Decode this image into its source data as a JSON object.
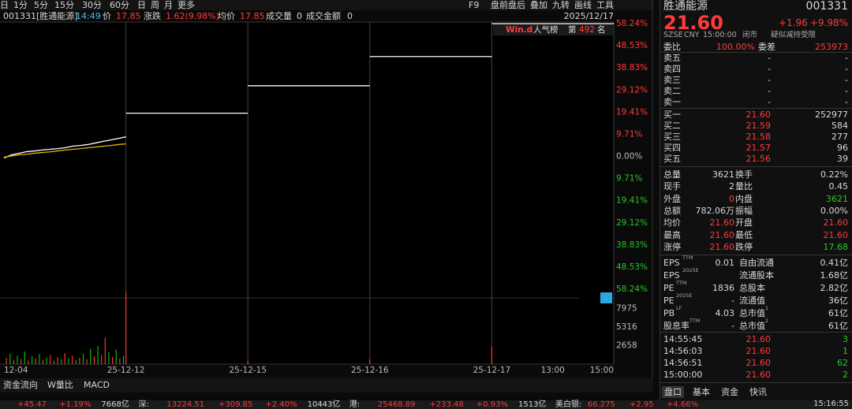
{
  "toolbar": {
    "left": [
      "日",
      "1分",
      "5分",
      "15分",
      "30分",
      "60分",
      "日",
      "周",
      "月",
      "更多"
    ],
    "right": [
      "F9",
      "盘前盘后",
      "叠加",
      "九转",
      "画线",
      "工具"
    ]
  },
  "info": {
    "code": "001331[胜通能源]",
    "time": "14:49",
    "price_label": "价",
    "price": "17.85",
    "change_label": "涨跌",
    "change": "1.62(9.98%)",
    "avg_label": "均价",
    "avg": "17.85",
    "vol_label": "成交量",
    "vol": "0",
    "amount_label": "成交金额",
    "amount": "0",
    "date": "2025/12/17"
  },
  "rank": {
    "brand": "Win.d",
    "label": "人气榜",
    "prefix": "第",
    "value": "492",
    "suffix": "名"
  },
  "chart_data": [
    {
      "type": "line",
      "xlim": [
        0,
        5
      ],
      "ylim": [
        -58.24,
        58.24
      ],
      "xticks": [
        {
          "value": 0,
          "label": "12-04"
        },
        {
          "value": 1,
          "label": "25-12-12"
        },
        {
          "value": 2,
          "label": "25-12-15"
        },
        {
          "value": 3,
          "label": "25-12-16"
        },
        {
          "value": 4,
          "label": "25-12-17"
        },
        {
          "value": 4.5,
          "label": "13:00"
        },
        {
          "value": 5,
          "label": "15:00"
        }
      ],
      "yticks": [
        {
          "value": 58.24,
          "label": "58.24%"
        },
        {
          "value": 48.53,
          "label": "48.53%"
        },
        {
          "value": 38.83,
          "label": "38.83%"
        },
        {
          "value": 29.12,
          "label": "29.12%"
        },
        {
          "value": 19.41,
          "label": "19.41%"
        },
        {
          "value": 9.71,
          "label": "9.71%"
        },
        {
          "value": 0,
          "label": "0.00%"
        },
        {
          "value": -9.71,
          "label": "9.71%"
        },
        {
          "value": -19.41,
          "label": "19.41%"
        },
        {
          "value": -29.12,
          "label": "29.12%"
        },
        {
          "value": -38.83,
          "label": "38.83%"
        },
        {
          "value": -48.53,
          "label": "48.53%"
        },
        {
          "value": -58.24,
          "label": "58.24%"
        }
      ],
      "x": [
        0,
        0.0625,
        0.125,
        0.1875,
        0.25,
        0.3125,
        0.375,
        0.4375,
        0.5,
        0.5625,
        0.625,
        0.6875,
        0.75,
        0.8125,
        0.875,
        0.9375,
        1,
        1,
        1,
        2,
        2,
        2,
        3,
        3,
        3,
        4,
        4,
        4,
        5
      ],
      "series": [
        {
          "color": "#ffffff",
          "values": [
            -0.7,
            0.7,
            1.4,
            2.1,
            2.4,
            2.8,
            3.1,
            3.4,
            3.8,
            4.5,
            4.8,
            5.2,
            5.9,
            6.6,
            7.2,
            7.9,
            8.6,
            null,
            18.97,
            18.97,
            null,
            31.0,
            31.0,
            null,
            43.8,
            43.8,
            null,
            58.24,
            58.24
          ]
        },
        {
          "color": "#e8b400",
          "values": [
            -0.3,
            0.2,
            0.7,
            1.0,
            1.4,
            1.7,
            2.0,
            2.4,
            2.8,
            3.1,
            3.4,
            3.8,
            4.1,
            4.5,
            4.8,
            5.2,
            5.5,
            null,
            null,
            null,
            null,
            null,
            null,
            null,
            null,
            null,
            null,
            null,
            null
          ]
        }
      ]
    },
    {
      "type": "bar",
      "xlim": [
        0,
        5
      ],
      "ylim": [
        0,
        10632
      ],
      "yticks": [
        2658,
        5316,
        7975
      ],
      "x": [
        0.02,
        0.05,
        0.08,
        0.11,
        0.14,
        0.17,
        0.2,
        0.23,
        0.26,
        0.29,
        0.32,
        0.35,
        0.38,
        0.41,
        0.44,
        0.47,
        0.5,
        0.53,
        0.56,
        0.59,
        0.62,
        0.65,
        0.68,
        0.71,
        0.74,
        0.77,
        0.8,
        0.83,
        0.86,
        0.89,
        0.92,
        0.95,
        0.98,
        1.0,
        2.0,
        3.0,
        4.0
      ],
      "values": [
        900,
        1500,
        600,
        1200,
        700,
        1800,
        500,
        1100,
        800,
        1400,
        600,
        900,
        1300,
        500,
        1000,
        700,
        1600,
        800,
        1200,
        600,
        900,
        1500,
        700,
        2200,
        1100,
        2600,
        1300,
        3800,
        1700,
        1000,
        2100,
        800,
        1200,
        10400,
        500,
        700,
        2500
      ],
      "colors": [
        "#ff3333",
        "#00c000",
        "#ff3333",
        "#00c000",
        "#ff3333",
        "#00c000",
        "#ff3333",
        "#00c000",
        "#ff3333",
        "#00c000",
        "#ff3333",
        "#00c000",
        "#ff3333",
        "#00c000",
        "#ff3333",
        "#00c000",
        "#ff3333",
        "#00c000",
        "#ff3333",
        "#00c000",
        "#ff3333",
        "#00c000",
        "#ff3333",
        "#00c000",
        "#ff3333",
        "#00c000",
        "#ff3333",
        "#ff3333",
        "#00c000",
        "#ff3333",
        "#00c000",
        "#ff3333",
        "#00c000",
        "#ff3333",
        "#ff3333",
        "#ff3333",
        "#ff3333"
      ]
    }
  ],
  "bottom_tabs": [
    "资金流向",
    "W量比",
    "MACD"
  ],
  "panel": {
    "name": "胜通能源",
    "code": "001331",
    "price": "21.60",
    "change": "+1.96",
    "pct": "+9.98%",
    "meta": [
      "SZSE",
      "CNY",
      "15:00:00",
      "闭市"
    ],
    "tag": "疑似减持受限",
    "weibi": [
      "委比",
      "100.00%",
      "委差",
      "253973"
    ],
    "asks": [
      [
        "卖五",
        "-",
        "-"
      ],
      [
        "卖四",
        "-",
        "-"
      ],
      [
        "卖三",
        "-",
        "-"
      ],
      [
        "卖二",
        "-",
        "-"
      ],
      [
        "卖一",
        "-",
        "-"
      ]
    ],
    "bids": [
      [
        "买一",
        "21.60",
        "252977"
      ],
      [
        "买二",
        "21.59",
        "584"
      ],
      [
        "买三",
        "21.58",
        "277"
      ],
      [
        "买四",
        "21.57",
        "96"
      ],
      [
        "买五",
        "21.56",
        "39"
      ]
    ],
    "stats": [
      [
        "总量",
        "3621",
        "换手",
        "0.22%"
      ],
      [
        "现手",
        "2",
        "量比",
        "0.45"
      ],
      [
        "外盘",
        "0",
        "内盘",
        "3621"
      ],
      [
        "总额",
        "782.06万",
        "振幅",
        "0.00%"
      ],
      [
        "均价",
        "21.60",
        "开盘",
        "21.60"
      ],
      [
        "最高",
        "21.60",
        "最低",
        "21.60"
      ],
      [
        "涨停",
        "21.60",
        "跌停",
        "17.68"
      ]
    ],
    "fin": [
      {
        "label": "EPS",
        "sup": "TTM",
        "value": "0.01",
        "label2": "自由流通",
        "value2": "0.41亿"
      },
      {
        "label": "EPS",
        "sup": "2025E",
        "label2": "流通股本",
        "value2": "1.68亿"
      },
      {
        "label": "PE",
        "sup": "TTM",
        "value": "1836",
        "label2": "总股本",
        "value2": "2.82亿"
      },
      {
        "label": "PE",
        "sup": "2025E",
        "value": "-",
        "label2": "流通值",
        "value2": "36亿"
      },
      {
        "label": "PB",
        "sup": "LF",
        "value": "4.03",
        "label2": "总市值",
        "sup2": "1",
        "value2": "61亿"
      },
      {
        "label": "股息率",
        "sup": "TTM",
        "value": "-",
        "label2": "总市值",
        "sup2": "2",
        "value2": "61亿"
      }
    ],
    "trades": [
      [
        "14:55:45",
        "21.60",
        "3"
      ],
      [
        "14:56:03",
        "21.60",
        "1"
      ],
      [
        "14:56:51",
        "21.60",
        "62"
      ],
      [
        "15:00:00",
        "21.60",
        "2"
      ]
    ],
    "tabs": [
      "盘口",
      "基本",
      "资金",
      "快讯"
    ]
  },
  "ticker": {
    "items": [
      "+45.47",
      "+1.19%",
      "7668亿",
      "深:",
      "13224.51",
      "+309.85",
      "+2.40%",
      "10443亿",
      "港:",
      "25468.89",
      "+233.48",
      "+0.93%",
      "1513亿",
      "美白银:",
      "66.275",
      "+2.95",
      "+4.66%"
    ],
    "time": "15:16:55"
  }
}
